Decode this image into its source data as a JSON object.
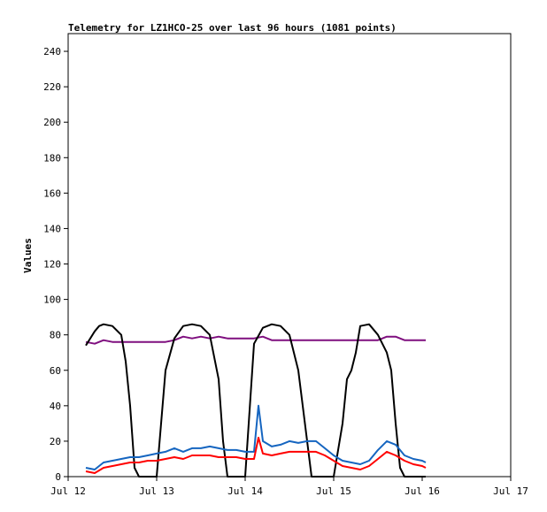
{
  "chart_data": {
    "type": "line",
    "title": "Telemetry for LZ1HCO-25 over last 96 hours (1081 points)",
    "xlabel": "",
    "ylabel": "Values",
    "x_ticks": [
      "Jul 12",
      "Jul 13",
      "Jul 14",
      "Jul 15",
      "Jul 16",
      "Jul 17"
    ],
    "xlim_days": [
      0,
      5
    ],
    "ylim": [
      0,
      250
    ],
    "y_ticks": [
      0,
      20,
      40,
      60,
      80,
      100,
      120,
      140,
      160,
      180,
      200,
      220,
      240
    ],
    "grid": false,
    "legend": "none",
    "series": [
      {
        "color": "#7f0f7f",
        "x": [
          0.2,
          0.3,
          0.4,
          0.5,
          0.6,
          0.7,
          0.8,
          0.9,
          1.0,
          1.1,
          1.2,
          1.3,
          1.4,
          1.5,
          1.6,
          1.7,
          1.8,
          1.9,
          2.0,
          2.1,
          2.2,
          2.3,
          2.4,
          2.5,
          2.6,
          2.7,
          2.8,
          2.9,
          3.0,
          3.1,
          3.2,
          3.3,
          3.4,
          3.5,
          3.6,
          3.7,
          3.8,
          3.9,
          4.0,
          4.04
        ],
        "values": [
          76,
          75,
          77,
          76,
          76,
          76,
          76,
          76,
          76,
          76,
          77,
          79,
          78,
          79,
          78,
          79,
          78,
          78,
          78,
          78,
          79,
          77,
          77,
          77,
          77,
          77,
          77,
          77,
          77,
          77,
          77,
          77,
          77,
          77,
          79,
          79,
          77,
          77,
          77,
          77
        ]
      },
      {
        "color": "#000000",
        "x": [
          0.2,
          0.3,
          0.35,
          0.4,
          0.5,
          0.6,
          0.65,
          0.7,
          0.75,
          0.8,
          1.0,
          1.1,
          1.2,
          1.3,
          1.4,
          1.5,
          1.6,
          1.7,
          1.75,
          1.8,
          1.85,
          2.0,
          2.1,
          2.2,
          2.3,
          2.4,
          2.5,
          2.6,
          2.7,
          2.75,
          2.8,
          3.0,
          3.1,
          3.15,
          3.2,
          3.25,
          3.3,
          3.4,
          3.5,
          3.6,
          3.65,
          3.7,
          3.75,
          3.8,
          3.85,
          4.04
        ],
        "values": [
          74,
          82,
          85,
          86,
          85,
          80,
          65,
          40,
          5,
          0,
          0,
          60,
          78,
          85,
          86,
          85,
          80,
          55,
          20,
          0,
          0,
          0,
          75,
          84,
          86,
          85,
          80,
          60,
          20,
          0,
          0,
          0,
          30,
          55,
          60,
          70,
          85,
          86,
          80,
          70,
          60,
          30,
          5,
          0,
          0,
          0
        ]
      },
      {
        "color": "#1565c0",
        "x": [
          0.2,
          0.3,
          0.4,
          0.5,
          0.6,
          0.7,
          0.8,
          0.9,
          1.0,
          1.1,
          1.2,
          1.3,
          1.4,
          1.5,
          1.6,
          1.7,
          1.8,
          1.9,
          2.0,
          2.1,
          2.15,
          2.2,
          2.3,
          2.4,
          2.5,
          2.6,
          2.7,
          2.8,
          2.9,
          3.0,
          3.1,
          3.2,
          3.3,
          3.4,
          3.5,
          3.6,
          3.7,
          3.8,
          3.9,
          4.0,
          4.04
        ],
        "values": [
          5,
          4,
          8,
          9,
          10,
          11,
          11,
          12,
          13,
          14,
          16,
          14,
          16,
          16,
          17,
          16,
          15,
          15,
          14,
          14,
          40,
          20,
          17,
          18,
          20,
          19,
          20,
          20,
          16,
          12,
          9,
          8,
          7,
          9,
          15,
          20,
          18,
          12,
          10,
          9,
          8
        ]
      },
      {
        "color": "#ff0000",
        "x": [
          0.2,
          0.3,
          0.4,
          0.5,
          0.6,
          0.7,
          0.8,
          0.9,
          1.0,
          1.1,
          1.2,
          1.3,
          1.4,
          1.5,
          1.6,
          1.7,
          1.8,
          1.9,
          2.0,
          2.1,
          2.15,
          2.2,
          2.3,
          2.4,
          2.5,
          2.6,
          2.7,
          2.8,
          2.9,
          3.0,
          3.1,
          3.2,
          3.3,
          3.4,
          3.5,
          3.6,
          3.7,
          3.8,
          3.9,
          4.0,
          4.04
        ],
        "values": [
          3,
          2,
          5,
          6,
          7,
          8,
          8,
          9,
          9,
          10,
          11,
          10,
          12,
          12,
          12,
          11,
          11,
          11,
          10,
          10,
          22,
          13,
          12,
          13,
          14,
          14,
          14,
          14,
          12,
          9,
          6,
          5,
          4,
          6,
          10,
          14,
          12,
          9,
          7,
          6,
          5
        ]
      }
    ]
  }
}
